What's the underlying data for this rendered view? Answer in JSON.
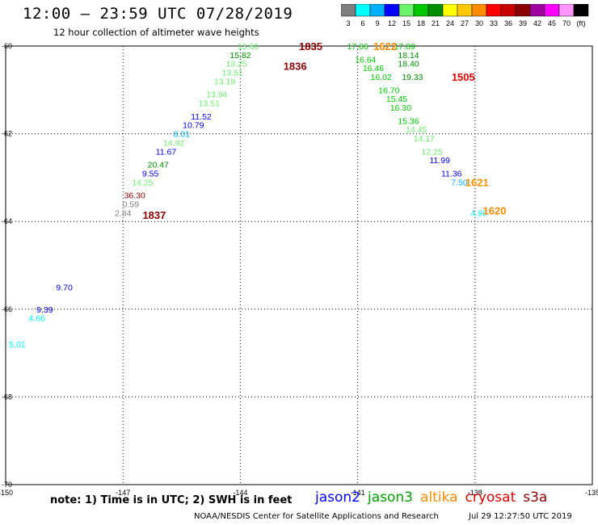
{
  "header": {
    "title": "12:00 – 23:59 UTC 07/28/2019",
    "subtitle": "12 hour collection of altimeter wave heights"
  },
  "color_scale": {
    "bins": [
      {
        "label": "3",
        "color": "#7f7f7f"
      },
      {
        "label": "6",
        "color": "#00ffff"
      },
      {
        "label": "9",
        "color": "#00b0ff"
      },
      {
        "label": "12",
        "color": "#0000ff"
      },
      {
        "label": "15",
        "color": "#6cf26c"
      },
      {
        "label": "18",
        "color": "#00c800"
      },
      {
        "label": "21",
        "color": "#008f00"
      },
      {
        "label": "24",
        "color": "#ffff00"
      },
      {
        "label": "27",
        "color": "#ffc800"
      },
      {
        "label": "30",
        "color": "#ff8c00"
      },
      {
        "label": "33",
        "color": "#ff0000"
      },
      {
        "label": "36",
        "color": "#c80000"
      },
      {
        "label": "39",
        "color": "#8b0000"
      },
      {
        "label": "42",
        "color": "#a000a0"
      },
      {
        "label": "45",
        "color": "#ff00ff"
      },
      {
        "label": "70",
        "color": "#ff96ff"
      },
      {
        "label": "(ft)",
        "color": "#000000"
      }
    ]
  },
  "footer": {
    "note": "note: 1) Time is in UTC; 2) SWH is in feet",
    "missions": [
      {
        "label": "jason2",
        "color": "#0000ff"
      },
      {
        "label": "jason3",
        "color": "#00a000"
      },
      {
        "label": "altika",
        "color": "#ff8c00"
      },
      {
        "label": "cryosat",
        "color": "#e00000"
      },
      {
        "label": "s3a",
        "color": "#8b0000"
      }
    ],
    "credit": "NOAA/NESDIS Center for Satellite Applications and Research",
    "timestamp": "Jul 29 12:27:50 UTC 2019"
  },
  "chart_data": {
    "type": "scatter",
    "xlim": [
      -150,
      -135
    ],
    "ylim": [
      -70,
      -60
    ],
    "x_ticks": [
      "-150",
      "-147",
      "-144",
      "-141",
      "-138",
      "-135"
    ],
    "y_ticks": [
      "-60",
      "-62",
      "-64",
      "-66",
      "-68",
      "-70"
    ],
    "grid": true,
    "points": [
      {
        "lon": -143.8,
        "lat": -60.0,
        "text": "13.60",
        "color": "#6cf26c"
      },
      {
        "lon": -144.0,
        "lat": -60.2,
        "text": "15.82",
        "color": "#008f00"
      },
      {
        "lon": -144.1,
        "lat": -60.4,
        "text": "13.25",
        "color": "#6cf26c"
      },
      {
        "lon": -144.2,
        "lat": -60.6,
        "text": "13.51",
        "color": "#6cf26c"
      },
      {
        "lon": -144.4,
        "lat": -60.8,
        "text": "13.19",
        "color": "#6cf26c"
      },
      {
        "lon": -144.6,
        "lat": -61.1,
        "text": "13.94",
        "color": "#6cf26c"
      },
      {
        "lon": -144.8,
        "lat": -61.3,
        "text": "13.51",
        "color": "#6cf26c"
      },
      {
        "lon": -145.0,
        "lat": -61.6,
        "text": "11.52",
        "color": "#0000ff"
      },
      {
        "lon": -145.2,
        "lat": -61.8,
        "text": "10.79",
        "color": "#0000ff"
      },
      {
        "lon": -145.5,
        "lat": -62.0,
        "text": "8.01",
        "color": "#00b0ff"
      },
      {
        "lon": -145.7,
        "lat": -62.2,
        "text": "14.92",
        "color": "#6cf26c"
      },
      {
        "lon": -145.9,
        "lat": -62.4,
        "text": "11.67",
        "color": "#0000ff"
      },
      {
        "lon": -146.1,
        "lat": -62.7,
        "text": "20.47",
        "color": "#008f00"
      },
      {
        "lon": -146.3,
        "lat": -62.9,
        "text": "9.55",
        "color": "#0000ff"
      },
      {
        "lon": -146.5,
        "lat": -63.1,
        "text": "14.25",
        "color": "#6cf26c"
      },
      {
        "lon": -146.7,
        "lat": -63.4,
        "text": "36.30",
        "color": "#8b0000"
      },
      {
        "lon": -146.8,
        "lat": -63.6,
        "text": "0.59",
        "color": "#7f7f7f"
      },
      {
        "lon": -147.0,
        "lat": -63.8,
        "text": "2.84",
        "color": "#7f7f7f"
      },
      {
        "lon": -148.5,
        "lat": -65.5,
        "text": "9.70",
        "color": "#0000ff"
      },
      {
        "lon": -149.0,
        "lat": -66.0,
        "text": "9.39",
        "color": "#0000ff"
      },
      {
        "lon": -149.2,
        "lat": -66.2,
        "text": "4.66",
        "color": "#00ffff"
      },
      {
        "lon": -149.7,
        "lat": -66.8,
        "text": "5.01",
        "color": "#00ffff"
      },
      {
        "lon": -141.0,
        "lat": -60.0,
        "text": "17.66",
        "color": "#00c800"
      },
      {
        "lon": -140.8,
        "lat": -60.3,
        "text": "16.64",
        "color": "#00c800"
      },
      {
        "lon": -140.6,
        "lat": -60.5,
        "text": "16.46",
        "color": "#00c800"
      },
      {
        "lon": -140.4,
        "lat": -60.7,
        "text": "16.02",
        "color": "#00c800"
      },
      {
        "lon": -140.2,
        "lat": -61.0,
        "text": "16.70",
        "color": "#00c800"
      },
      {
        "lon": -140.0,
        "lat": -61.2,
        "text": "15.45",
        "color": "#00c800"
      },
      {
        "lon": -139.9,
        "lat": -61.4,
        "text": "16.30",
        "color": "#00c800"
      },
      {
        "lon": -139.7,
        "lat": -61.7,
        "text": "15.36",
        "color": "#00c800"
      },
      {
        "lon": -139.5,
        "lat": -61.9,
        "text": "14.45",
        "color": "#6cf26c"
      },
      {
        "lon": -139.3,
        "lat": -62.1,
        "text": "14.17",
        "color": "#6cf26c"
      },
      {
        "lon": -139.1,
        "lat": -62.4,
        "text": "12.25",
        "color": "#6cf26c"
      },
      {
        "lon": -138.9,
        "lat": -62.6,
        "text": "11.99",
        "color": "#0000ff"
      },
      {
        "lon": -138.6,
        "lat": -62.9,
        "text": "11.36",
        "color": "#0000ff"
      },
      {
        "lon": -138.4,
        "lat": -63.1,
        "text": "7.50",
        "color": "#00b0ff"
      },
      {
        "lon": -137.9,
        "lat": -63.8,
        "text": "4.98",
        "color": "#00ffff"
      },
      {
        "lon": -139.8,
        "lat": -60.0,
        "text": "17.89",
        "color": "#00c800"
      },
      {
        "lon": -139.7,
        "lat": -60.2,
        "text": "18.14",
        "color": "#008f00"
      },
      {
        "lon": -139.7,
        "lat": -60.4,
        "text": "18.40",
        "color": "#008f00"
      },
      {
        "lon": -139.6,
        "lat": -60.7,
        "text": "19.33",
        "color": "#008f00"
      }
    ],
    "pass_times": [
      {
        "lon": -142.2,
        "lat": -60.0,
        "text": "1835",
        "color": "#8b0000"
      },
      {
        "lon": -142.6,
        "lat": -60.45,
        "text": "1836",
        "color": "#8b0000"
      },
      {
        "lon": -146.2,
        "lat": -63.85,
        "text": "1837",
        "color": "#8b0000"
      },
      {
        "lon": -140.3,
        "lat": -60.0,
        "text": "1622",
        "color": "#ff8c00"
      },
      {
        "lon": -138.3,
        "lat": -60.7,
        "text": "1505",
        "color": "#e00000"
      },
      {
        "lon": -137.95,
        "lat": -63.1,
        "text": "1621",
        "color": "#ff8c00"
      },
      {
        "lon": -137.5,
        "lat": -63.75,
        "text": "1620",
        "color": "#ff8c00"
      }
    ]
  }
}
